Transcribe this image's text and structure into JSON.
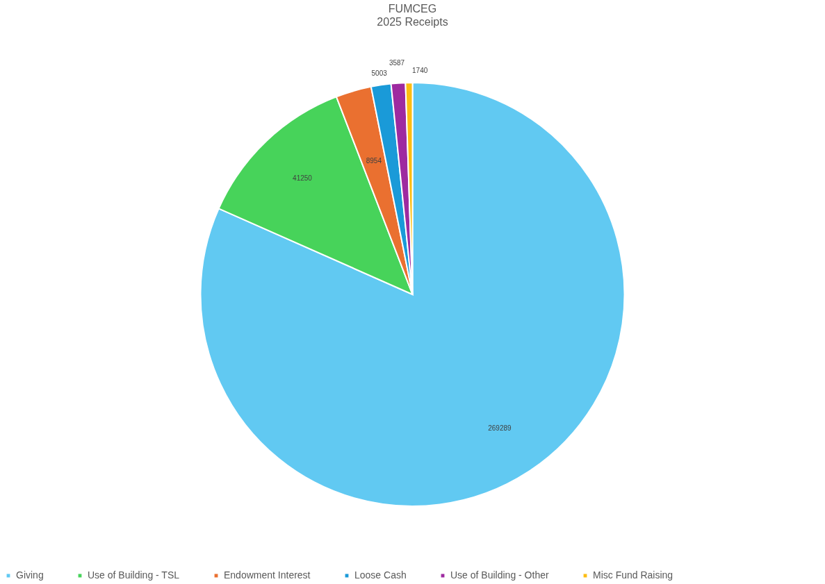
{
  "chart_data": {
    "type": "pie",
    "title": "FUMCEG",
    "subtitle": "2025 Receipts",
    "categories": [
      "Giving",
      "Use of Building - TSL",
      "Endowment Interest",
      "Loose Cash",
      "Use of Building - Other",
      "Misc Fund Raising"
    ],
    "values": [
      269289,
      41250,
      8954,
      5003,
      3587,
      1740
    ],
    "colors": [
      "#61c9f2",
      "#47d35a",
      "#ea7030",
      "#1a9ad8",
      "#9e2aa0",
      "#fdbd12"
    ],
    "data_labels": true,
    "legend": "bottom"
  }
}
